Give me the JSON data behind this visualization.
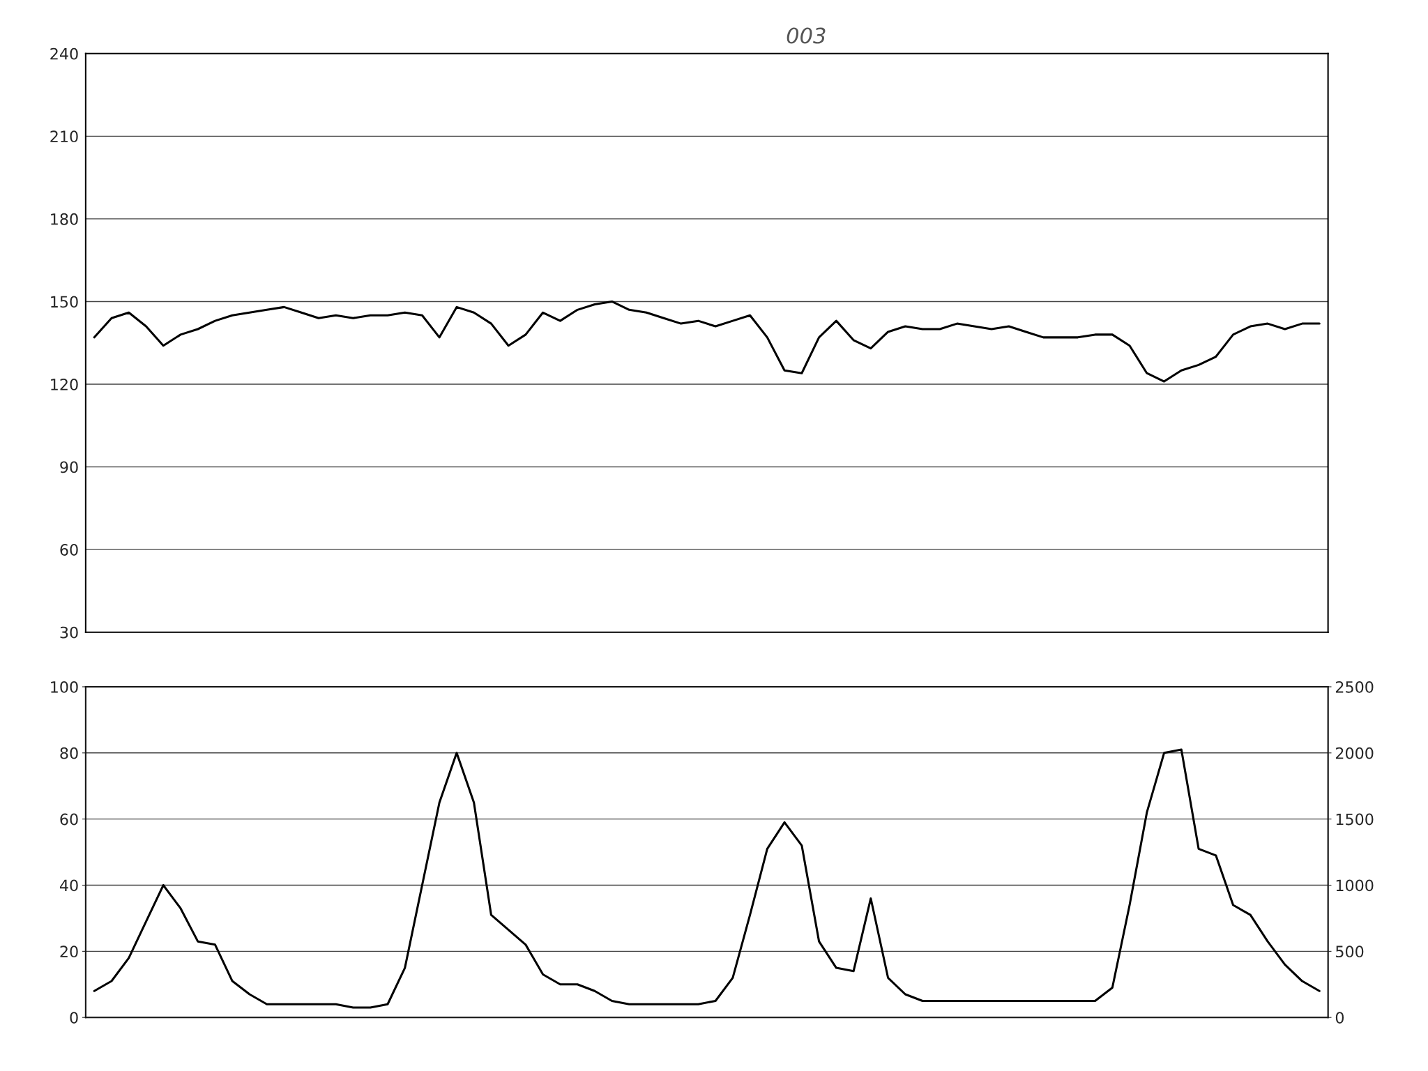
{
  "chart_data": [
    {
      "type": "line",
      "categories": [
        null,
        null,
        null,
        null,
        null,
        null,
        null,
        null,
        null,
        null,
        null,
        null,
        null,
        null,
        null,
        null,
        null,
        null,
        null,
        null,
        null,
        null,
        null,
        null,
        null,
        null,
        null,
        null,
        null,
        null,
        null,
        null,
        null,
        null,
        null,
        null,
        null,
        null,
        null,
        null,
        null,
        null,
        null,
        null,
        null,
        null,
        null,
        null,
        null,
        null,
        null,
        null,
        null,
        null,
        null,
        null,
        null,
        null,
        null,
        null,
        null,
        null,
        null,
        null,
        null,
        null,
        null,
        null,
        null,
        null,
        null,
        null
      ],
      "series": [
        {
          "color": "#000000",
          "values": [
            137,
            144,
            146,
            141,
            134,
            138,
            140,
            143,
            145,
            146,
            147,
            148,
            146,
            144,
            145,
            144,
            145,
            145,
            146,
            145,
            137,
            148,
            146,
            142,
            134,
            138,
            146,
            143,
            147,
            149,
            150,
            147,
            146,
            144,
            142,
            143,
            141,
            143,
            145,
            137,
            125,
            124,
            137,
            143,
            136,
            133,
            139,
            141,
            140,
            140,
            142,
            141,
            140,
            141,
            139,
            137,
            137,
            137,
            138,
            138,
            134,
            124,
            121,
            125,
            127,
            130,
            138,
            141,
            142,
            140,
            142,
            142
          ]
        }
      ],
      "annotations": [
        "003"
      ],
      "ylim": [
        30,
        240
      ],
      "yticks": [
        30,
        60,
        90,
        120,
        150,
        180,
        210,
        240
      ],
      "grid": "y",
      "tick_labels": "y"
    },
    {
      "type": "line",
      "categories": [
        null,
        null,
        null,
        null,
        null,
        null,
        null,
        null,
        null,
        null,
        null,
        null,
        null,
        null,
        null,
        null,
        null,
        null,
        null,
        null,
        null,
        null,
        null,
        null,
        null,
        null,
        null,
        null,
        null,
        null,
        null,
        null,
        null,
        null,
        null,
        null,
        null,
        null,
        null,
        null,
        null,
        null,
        null,
        null,
        null,
        null,
        null,
        null,
        null,
        null,
        null,
        null,
        null,
        null,
        null,
        null,
        null,
        null,
        null,
        null,
        null,
        null,
        null,
        null,
        null,
        null,
        null,
        null,
        null,
        null,
        null,
        null
      ],
      "series": [
        {
          "color": "#000000",
          "values": [
            8,
            11,
            18,
            29,
            40,
            33,
            23,
            22,
            11,
            7,
            4,
            4,
            4,
            4,
            4,
            3,
            3,
            4,
            15,
            40,
            65,
            80,
            65,
            31,
            null,
            22,
            13,
            10,
            10,
            8,
            5,
            4,
            4,
            4,
            4,
            4,
            5,
            12,
            31,
            51,
            59,
            52,
            23,
            15,
            14,
            36,
            12,
            7,
            5,
            5,
            5,
            5,
            5,
            5,
            5,
            5,
            5,
            5,
            5,
            9,
            34,
            62,
            80,
            81,
            51,
            49,
            34,
            31,
            23,
            16,
            11,
            8
          ]
        }
      ],
      "ylim": [
        0,
        100
      ],
      "yticks": [
        0,
        20,
        40,
        60,
        80,
        100
      ],
      "y2lim": [
        0,
        2500
      ],
      "y2ticks": [
        0,
        500,
        1000,
        1500,
        2000,
        2500
      ],
      "grid": "y",
      "tick_labels": "y"
    }
  ]
}
